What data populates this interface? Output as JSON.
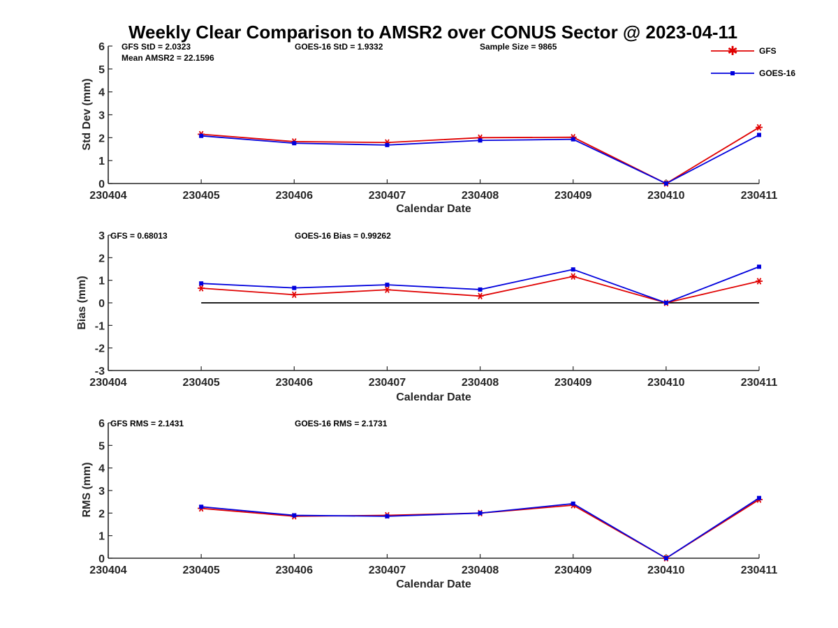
{
  "title": "Weekly Clear Comparison to AMSR2 over CONUS Sector @ 2023-04-11",
  "legend": [
    {
      "label": "GFS",
      "color": "#e00000",
      "marker": "asterisk"
    },
    {
      "label": "GOES-16",
      "color": "#0000dd",
      "marker": "square"
    }
  ],
  "colors": {
    "gfs": "#e00000",
    "goes": "#0000dd",
    "zero_line": "#000000",
    "axis": "#262626"
  },
  "chart_data": [
    {
      "type": "line",
      "xlabel": "Calendar Date",
      "ylabel": "Std Dev (mm)",
      "categories": [
        "230404",
        "230405",
        "230406",
        "230407",
        "230408",
        "230409",
        "230410",
        "230411"
      ],
      "ylim": [
        0,
        6
      ],
      "yticks": [
        "0",
        "1",
        "2",
        "3",
        "4",
        "5",
        "6"
      ],
      "annotations": {
        "gfs_stat": "GFS StD = 2.0323",
        "goes_stat": "GOES-16 StD = 1.9332",
        "mean_amsr2": "Mean AMSR2 = 22.1596",
        "sample_size": "Sample Size = 9865"
      },
      "series": [
        {
          "name": "GFS",
          "x": [
            "230405",
            "230406",
            "230407",
            "230408",
            "230409",
            "230410",
            "230411"
          ],
          "values": [
            2.15,
            1.83,
            1.79,
            2.0,
            2.02,
            0.0,
            2.45
          ]
        },
        {
          "name": "GOES-16",
          "x": [
            "230405",
            "230406",
            "230407",
            "230408",
            "230409",
            "230410",
            "230411"
          ],
          "values": [
            2.08,
            1.76,
            1.68,
            1.88,
            1.93,
            0.0,
            2.12
          ]
        }
      ]
    },
    {
      "type": "line",
      "xlabel": "Calendar Date",
      "ylabel": "Bias (mm)",
      "categories": [
        "230404",
        "230405",
        "230406",
        "230407",
        "230408",
        "230409",
        "230410",
        "230411"
      ],
      "ylim": [
        -3,
        3
      ],
      "yticks": [
        "-3",
        "-2",
        "-1",
        "0",
        "1",
        "2",
        "3"
      ],
      "zero_line": true,
      "annotations": {
        "gfs_stat": "GFS = 0.68013",
        "goes_stat": "GOES-16 Bias  = 0.99262"
      },
      "series": [
        {
          "name": "GFS",
          "x": [
            "230405",
            "230406",
            "230407",
            "230408",
            "230409",
            "230410",
            "230411"
          ],
          "values": [
            0.65,
            0.36,
            0.58,
            0.3,
            1.17,
            0.0,
            0.96
          ]
        },
        {
          "name": "GOES-16",
          "x": [
            "230405",
            "230406",
            "230407",
            "230408",
            "230409",
            "230410",
            "230411"
          ],
          "values": [
            0.86,
            0.66,
            0.8,
            0.59,
            1.48,
            0.0,
            1.6
          ]
        }
      ]
    },
    {
      "type": "line",
      "xlabel": "Calendar Date",
      "ylabel": "RMS (mm)",
      "categories": [
        "230404",
        "230405",
        "230406",
        "230407",
        "230408",
        "230409",
        "230410",
        "230411"
      ],
      "ylim": [
        0,
        6
      ],
      "yticks": [
        "0",
        "1",
        "2",
        "3",
        "4",
        "5",
        "6"
      ],
      "annotations": {
        "gfs_stat": "GFS RMS = 2.1431",
        "goes_stat": "GOES-16 RMS = 2.1731"
      },
      "series": [
        {
          "name": "GFS",
          "x": [
            "230405",
            "230406",
            "230407",
            "230408",
            "230409",
            "230410",
            "230411"
          ],
          "values": [
            2.21,
            1.86,
            1.9,
            2.0,
            2.35,
            0.0,
            2.6
          ]
        },
        {
          "name": "GOES-16",
          "x": [
            "230405",
            "230406",
            "230407",
            "230408",
            "230409",
            "230410",
            "230411"
          ],
          "values": [
            2.28,
            1.9,
            1.86,
            2.0,
            2.42,
            0.0,
            2.67
          ]
        }
      ]
    }
  ]
}
